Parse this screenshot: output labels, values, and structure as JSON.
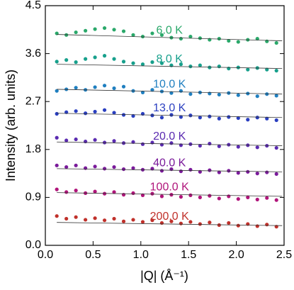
{
  "chart_data": {
    "type": "scatter",
    "xlabel": "|Q| (Å⁻¹)",
    "ylabel": "Intensity (arb. units)",
    "xlim": [
      0,
      2.5
    ],
    "ylim": [
      0,
      4.5
    ],
    "xticks": [
      {
        "value": 0,
        "label": "0.0"
      },
      0.5,
      {
        "value": 1,
        "label": "1.0"
      },
      1.5,
      {
        "value": 2,
        "label": "2.0"
      },
      2.5
    ],
    "yticks": [
      {
        "value": 0,
        "label": "0.0"
      },
      0.9,
      1.8,
      2.7,
      3.6,
      4.5
    ],
    "x": [
      0.12,
      0.22,
      0.32,
      0.42,
      0.52,
      0.62,
      0.72,
      0.82,
      0.92,
      1.02,
      1.12,
      1.22,
      1.32,
      1.42,
      1.52,
      1.62,
      1.72,
      1.82,
      1.92,
      2.02,
      2.12,
      2.22,
      2.32,
      2.42
    ],
    "fit_x": [
      0.12,
      2.48
    ],
    "series": [
      {
        "name": "6.0 K",
        "color": "#2aa86a",
        "fit": [
          3.96,
          3.84
        ],
        "values": [
          3.98,
          3.95,
          4.0,
          4.03,
          4.06,
          4.08,
          4.05,
          4.02,
          3.95,
          3.92,
          3.98,
          3.95,
          3.9,
          3.88,
          3.92,
          3.89,
          3.86,
          3.88,
          3.84,
          3.82,
          3.86,
          3.88,
          3.83,
          3.8
        ]
      },
      {
        "name": "8.0 K",
        "color": "#17a08c",
        "fit": [
          3.4,
          3.32
        ],
        "values": [
          3.45,
          3.48,
          3.44,
          3.5,
          3.53,
          3.56,
          3.5,
          3.45,
          3.42,
          3.4,
          3.44,
          3.42,
          3.38,
          3.4,
          3.36,
          3.38,
          3.34,
          3.36,
          3.32,
          3.34,
          3.3,
          3.33,
          3.3,
          3.28
        ]
      },
      {
        "name": "10.0 K",
        "color": "#1f7fc0",
        "fit": [
          2.93,
          2.84
        ],
        "values": [
          2.9,
          2.93,
          2.96,
          2.92,
          2.97,
          3.0,
          2.95,
          2.98,
          2.9,
          2.87,
          2.92,
          2.89,
          2.86,
          2.9,
          2.84,
          2.87,
          2.85,
          2.83,
          2.86,
          2.82,
          2.85,
          2.8,
          2.84,
          2.81
        ]
      },
      {
        "name": "13.0 K",
        "color": "#2a3fc0",
        "fit": [
          2.48,
          2.4
        ],
        "values": [
          2.47,
          2.5,
          2.52,
          2.48,
          2.51,
          2.54,
          2.49,
          2.45,
          2.43,
          2.47,
          2.44,
          2.4,
          2.45,
          2.41,
          2.44,
          2.4,
          2.42,
          2.38,
          2.41,
          2.39,
          2.36,
          2.4,
          2.38,
          2.35
        ]
      },
      {
        "name": "20.0 K",
        "color": "#5a2ab0",
        "fit": [
          1.94,
          1.87
        ],
        "values": [
          2.02,
          1.97,
          1.99,
          1.95,
          1.98,
          1.93,
          1.96,
          1.92,
          1.94,
          1.9,
          1.93,
          1.89,
          1.92,
          1.88,
          1.9,
          1.87,
          1.91,
          1.86,
          1.89,
          1.85,
          1.88,
          1.84,
          1.87,
          1.83
        ]
      },
      {
        "name": "40.0 K",
        "color": "#7a1a9a",
        "fit": [
          1.44,
          1.38
        ],
        "values": [
          1.5,
          1.47,
          1.5,
          1.45,
          1.48,
          1.44,
          1.47,
          1.43,
          1.45,
          1.42,
          1.44,
          1.4,
          1.43,
          1.39,
          1.42,
          1.38,
          1.41,
          1.37,
          1.4,
          1.36,
          1.38,
          1.35,
          1.37,
          1.34
        ]
      },
      {
        "name": "100.0 K",
        "color": "#b0147a",
        "fit": [
          0.99,
          0.92
        ],
        "values": [
          1.05,
          1.0,
          1.03,
          0.98,
          1.01,
          0.97,
          1.0,
          0.95,
          0.98,
          0.94,
          0.97,
          0.92,
          0.95,
          0.91,
          0.94,
          0.9,
          0.93,
          0.88,
          0.92,
          0.87,
          0.9,
          0.86,
          0.89,
          0.85
        ]
      },
      {
        "name": "200.0 K",
        "color": "#c0302a",
        "fit": [
          0.43,
          0.37
        ],
        "values": [
          0.55,
          0.5,
          0.53,
          0.48,
          0.51,
          0.47,
          0.5,
          0.45,
          0.48,
          0.44,
          0.47,
          0.42,
          0.45,
          0.41,
          0.44,
          0.4,
          0.43,
          0.38,
          0.42,
          0.37,
          0.4,
          0.36,
          0.39,
          0.35
        ]
      }
    ]
  }
}
